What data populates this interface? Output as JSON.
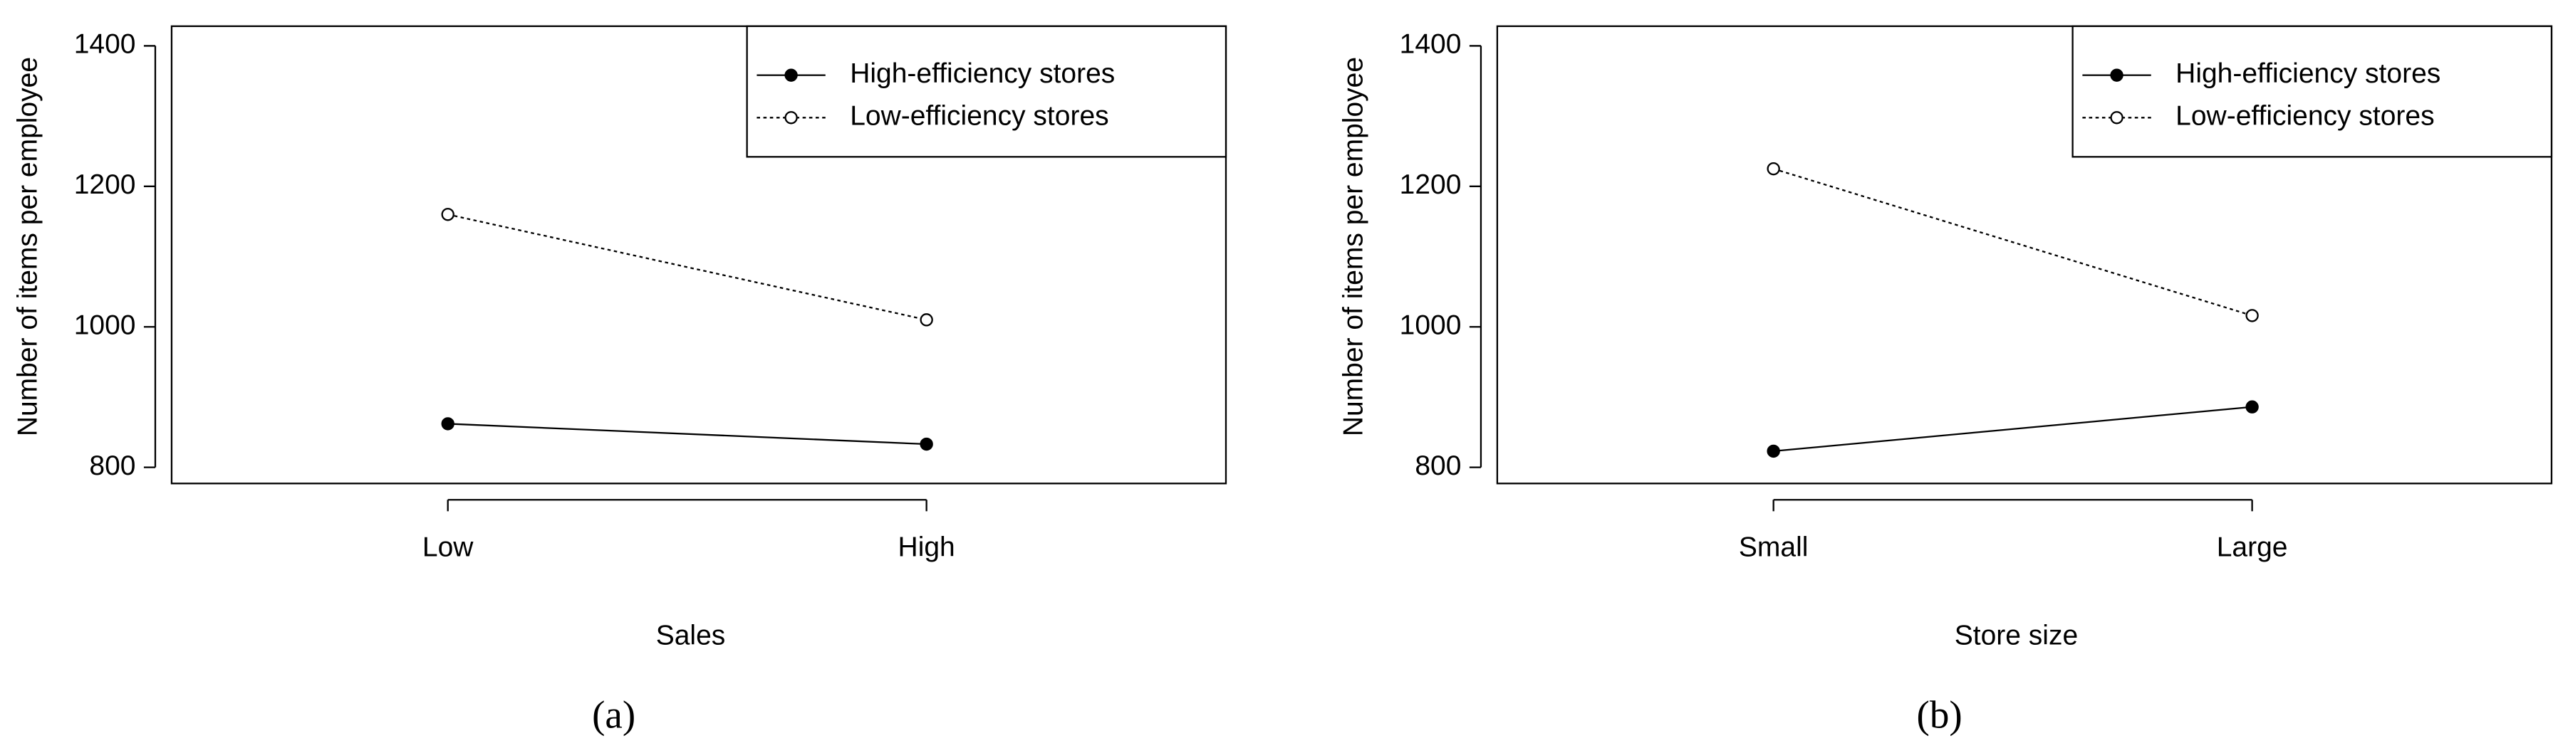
{
  "chart_data": [
    {
      "type": "line",
      "caption": "(a)",
      "x_label": "Sales",
      "y_label": "Number of items per employee",
      "categories": [
        "Low",
        "High"
      ],
      "series": [
        {
          "name": "High-efficiency stores",
          "color": "#000000",
          "dash": "solid",
          "marker_fill": "#000000",
          "values": [
            862,
            833
          ]
        },
        {
          "name": "Low-efficiency stores",
          "color": "#000000",
          "dash": "dotted",
          "marker_fill": "#ffffff",
          "values": [
            1160,
            1010
          ]
        }
      ],
      "ylim": [
        777,
        1428
      ],
      "yticks": [
        800,
        1000,
        1200,
        1400
      ],
      "legend": "top-right"
    },
    {
      "type": "line",
      "caption": "(b)",
      "x_label": "Store size",
      "y_label": "Number of items per employee",
      "categories": [
        "Small",
        "Large"
      ],
      "series": [
        {
          "name": "High-efficiency stores",
          "color": "#000000",
          "dash": "solid",
          "marker_fill": "#000000",
          "values": [
            823,
            886
          ]
        },
        {
          "name": "Low-efficiency stores",
          "color": "#000000",
          "dash": "dotted",
          "marker_fill": "#ffffff",
          "values": [
            1225,
            1016
          ]
        }
      ],
      "ylim": [
        777,
        1428
      ],
      "yticks": [
        800,
        1000,
        1200,
        1400
      ],
      "legend": "top-right"
    }
  ]
}
